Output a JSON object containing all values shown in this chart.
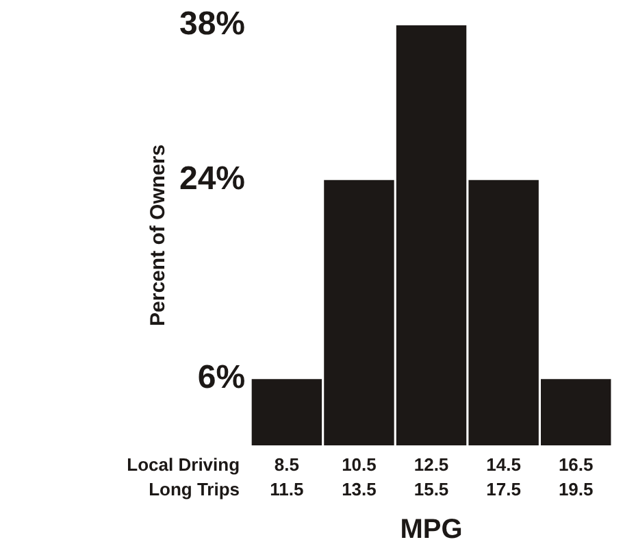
{
  "chart_data": {
    "type": "bar",
    "xlabel": "MPG",
    "ylabel": "Percent of Owners",
    "categories": [
      "8.5\n11.5",
      "10.5\n13.5",
      "12.5\n15.5",
      "14.5\n17.5",
      "16.5\n19.5"
    ],
    "values": [
      6,
      24,
      38,
      24,
      6
    ],
    "color": "#1c1816",
    "ylim": [
      0,
      38
    ],
    "yticks": [
      {
        "value": 6,
        "label": "6%"
      },
      {
        "value": 24,
        "label": "24%"
      },
      {
        "value": 38,
        "label": "38%"
      }
    ],
    "grid": false,
    "legend": false,
    "annotations": [
      "Local Driving",
      "Long Trips"
    ]
  }
}
